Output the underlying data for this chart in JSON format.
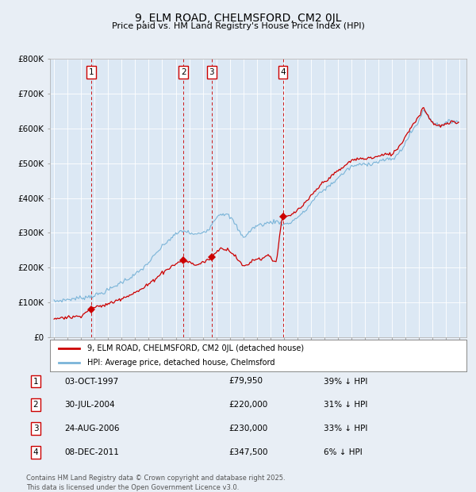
{
  "title": "9, ELM ROAD, CHELMSFORD, CM2 0JL",
  "subtitle": "Price paid vs. HM Land Registry's House Price Index (HPI)",
  "background_color": "#e8eef5",
  "plot_bg_color": "#dce8f4",
  "ylim": [
    0,
    800000
  ],
  "yticks": [
    0,
    100000,
    200000,
    300000,
    400000,
    500000,
    600000,
    700000,
    800000
  ],
  "ytick_labels": [
    "£0",
    "£100K",
    "£200K",
    "£300K",
    "£400K",
    "£500K",
    "£600K",
    "£700K",
    "£800K"
  ],
  "xlim_start": 1994.7,
  "xlim_end": 2025.5,
  "transactions": [
    {
      "id": 1,
      "date": "03-OCT-1997",
      "year": 1997.75,
      "price": 79950,
      "label": "39% ↓ HPI"
    },
    {
      "id": 2,
      "date": "30-JUL-2004",
      "year": 2004.58,
      "price": 220000,
      "label": "31% ↓ HPI"
    },
    {
      "id": 3,
      "date": "24-AUG-2006",
      "year": 2006.65,
      "price": 230000,
      "label": "33% ↓ HPI"
    },
    {
      "id": 4,
      "date": "08-DEC-2011",
      "year": 2011.92,
      "price": 347500,
      "label": "6% ↓ HPI"
    }
  ],
  "legend_price_label": "9, ELM ROAD, CHELMSFORD, CM2 0JL (detached house)",
  "legend_hpi_label": "HPI: Average price, detached house, Chelmsford",
  "footer": "Contains HM Land Registry data © Crown copyright and database right 2025.\nThis data is licensed under the Open Government Licence v3.0.",
  "red_color": "#cc0000",
  "blue_color": "#7ab4d8",
  "title_fontsize": 10,
  "subtitle_fontsize": 8
}
